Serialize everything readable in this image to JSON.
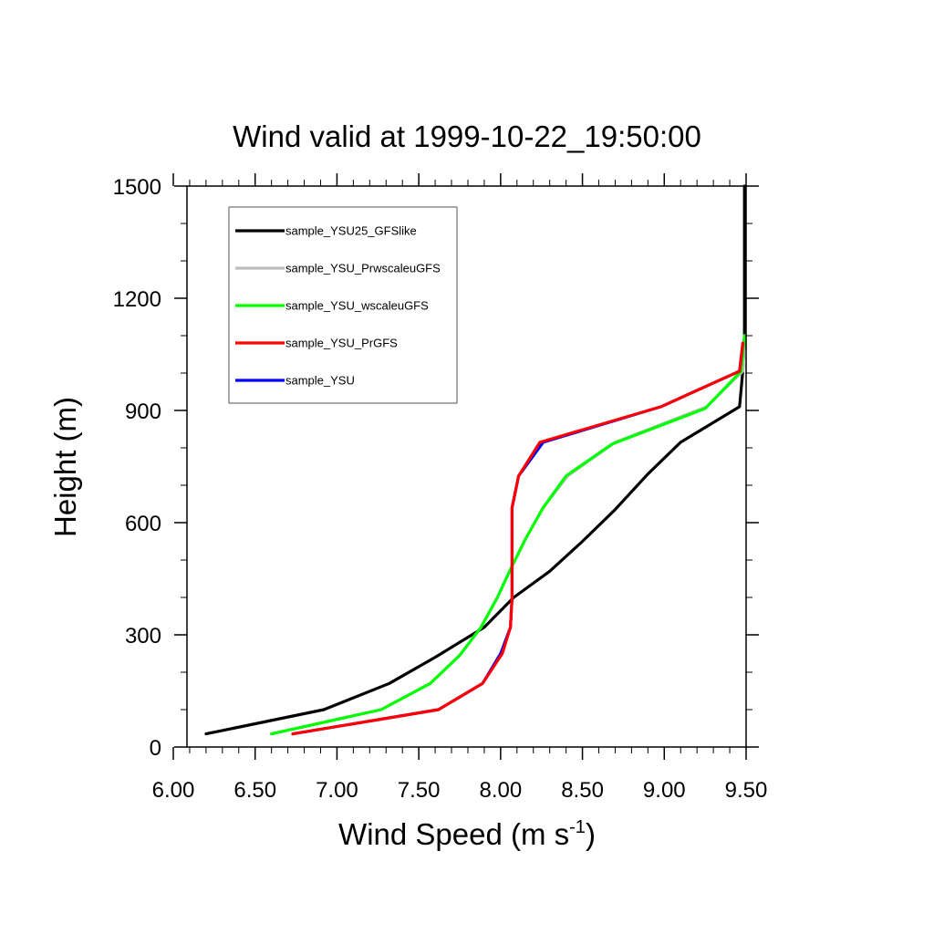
{
  "chart_data": {
    "type": "line",
    "title": "Wind valid at 1999-10-22_19:50:00",
    "xlabel": "Wind Speed (m s",
    "xlabel_sup": "-1",
    "xlabel_suffix": ")",
    "ylabel": "Height (m)",
    "xlim": [
      6.0,
      9.5
    ],
    "ylim": [
      0,
      1500
    ],
    "xticks": [
      "6.00",
      "6.50",
      "7.00",
      "7.50",
      "8.00",
      "8.50",
      "9.00",
      "9.50"
    ],
    "yticks": [
      "0",
      "300",
      "600",
      "900",
      "1200",
      "1500"
    ],
    "grid": false,
    "legend_position": "top-left",
    "series": [
      {
        "name": "sample_YSU25_GFSlike",
        "color": "#000000",
        "points": [
          [
            6.2,
            35
          ],
          [
            6.92,
            100
          ],
          [
            7.32,
            170
          ],
          [
            7.6,
            240
          ],
          [
            7.9,
            320
          ],
          [
            8.08,
            400
          ],
          [
            8.3,
            470
          ],
          [
            8.5,
            550
          ],
          [
            8.7,
            635
          ],
          [
            8.9,
            730
          ],
          [
            9.1,
            815
          ],
          [
            9.46,
            910
          ],
          [
            9.48,
            1005
          ],
          [
            9.49,
            1100
          ],
          [
            9.49,
            1200
          ],
          [
            9.49,
            1300
          ],
          [
            9.49,
            1400
          ],
          [
            9.49,
            1500
          ]
        ]
      },
      {
        "name": "sample_YSU_PrwscaleuGFS",
        "color": "#bebebe",
        "points": [
          [
            6.6,
            35
          ],
          [
            7.27,
            100
          ],
          [
            7.57,
            170
          ],
          [
            7.75,
            245
          ],
          [
            7.88,
            320
          ],
          [
            7.98,
            400
          ],
          [
            8.06,
            475
          ],
          [
            8.15,
            555
          ],
          [
            8.26,
            640
          ],
          [
            8.41,
            725
          ],
          [
            8.7,
            815
          ],
          [
            9.26,
            910
          ],
          [
            9.48,
            1005
          ],
          [
            9.49,
            1100
          ]
        ]
      },
      {
        "name": "sample_YSU_wscaleuGFS",
        "color": "#00ff00",
        "points": [
          [
            6.6,
            35
          ],
          [
            7.27,
            100
          ],
          [
            7.57,
            170
          ],
          [
            7.75,
            245
          ],
          [
            7.88,
            320
          ],
          [
            7.98,
            400
          ],
          [
            8.06,
            475
          ],
          [
            8.15,
            555
          ],
          [
            8.26,
            640
          ],
          [
            8.4,
            725
          ],
          [
            8.68,
            810
          ],
          [
            9.25,
            905
          ],
          [
            9.47,
            1005
          ],
          [
            9.49,
            1100
          ]
        ]
      },
      {
        "name": "sample_YSU_PrGFS",
        "color": "#ff0000",
        "points": [
          [
            6.73,
            35
          ],
          [
            7.62,
            100
          ],
          [
            7.89,
            170
          ],
          [
            8.01,
            250
          ],
          [
            8.06,
            320
          ],
          [
            8.07,
            400
          ],
          [
            8.07,
            480
          ],
          [
            8.07,
            560
          ],
          [
            8.07,
            640
          ],
          [
            8.11,
            725
          ],
          [
            8.24,
            815
          ],
          [
            8.98,
            910
          ],
          [
            9.46,
            1005
          ],
          [
            9.48,
            1080
          ]
        ]
      },
      {
        "name": "sample_YSU",
        "color": "#0000ff",
        "points": [
          [
            6.73,
            35
          ],
          [
            7.62,
            100
          ],
          [
            7.89,
            170
          ],
          [
            8.0,
            250
          ],
          [
            8.06,
            320
          ],
          [
            8.07,
            400
          ],
          [
            8.07,
            480
          ],
          [
            8.07,
            560
          ],
          [
            8.07,
            640
          ],
          [
            8.11,
            725
          ],
          [
            8.26,
            815
          ],
          [
            8.98,
            910
          ],
          [
            9.46,
            1005
          ],
          [
            9.48,
            1080
          ]
        ]
      }
    ],
    "legend_order": [
      0,
      1,
      2,
      3,
      4
    ],
    "draw_order": [
      0,
      1,
      2,
      4,
      3
    ]
  }
}
